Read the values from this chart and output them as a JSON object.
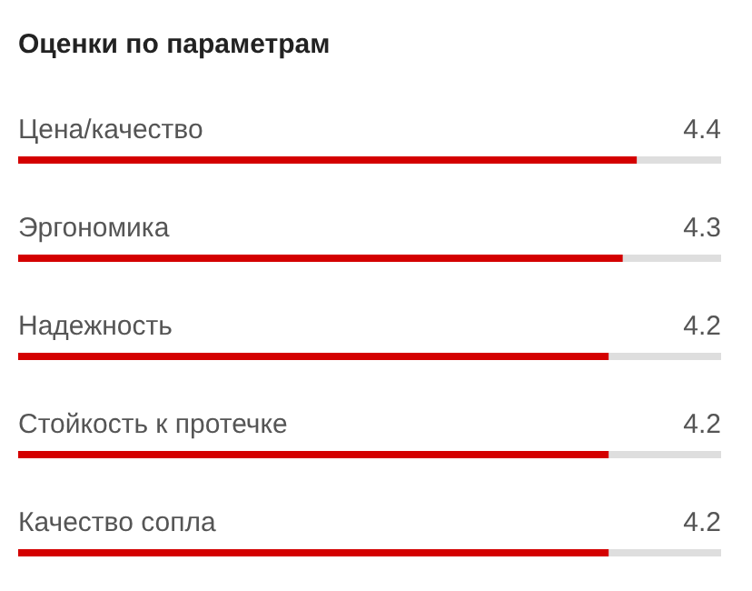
{
  "chart_data": {
    "type": "bar",
    "orientation": "horizontal",
    "title": "Оценки по параметрам",
    "categories": [
      "Цена/качество",
      "Эргономика",
      "Надежность",
      "Стойкость к протечке",
      "Качество сопла"
    ],
    "values": [
      4.4,
      4.3,
      4.2,
      4.2,
      4.2
    ],
    "color": "#d40000",
    "xlim": [
      0,
      5
    ],
    "data_labels": true
  }
}
